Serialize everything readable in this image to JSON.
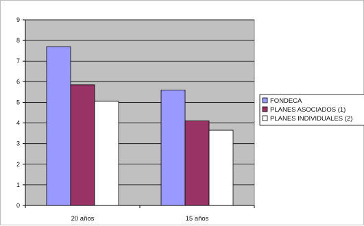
{
  "chart_data": {
    "type": "bar",
    "title": "",
    "xlabel": "",
    "ylabel": "",
    "ylim": [
      0,
      9
    ],
    "yticks": [
      0,
      1,
      2,
      3,
      4,
      5,
      6,
      7,
      8,
      9
    ],
    "grid": true,
    "legend_position": "right",
    "categories": [
      "20 años",
      "15 años"
    ],
    "series": [
      {
        "name": "FONDECA",
        "values": [
          7.7,
          5.6
        ],
        "color": "#9999ff"
      },
      {
        "name": "PLANES ASOCIADOS  (1)",
        "values": [
          5.85,
          4.1
        ],
        "color": "#993366"
      },
      {
        "name": "PLANES INDIVIDUALES (2)",
        "values": [
          5.05,
          3.65
        ],
        "color": "#ffffff"
      }
    ],
    "plot_background": "#c0c0c0"
  }
}
